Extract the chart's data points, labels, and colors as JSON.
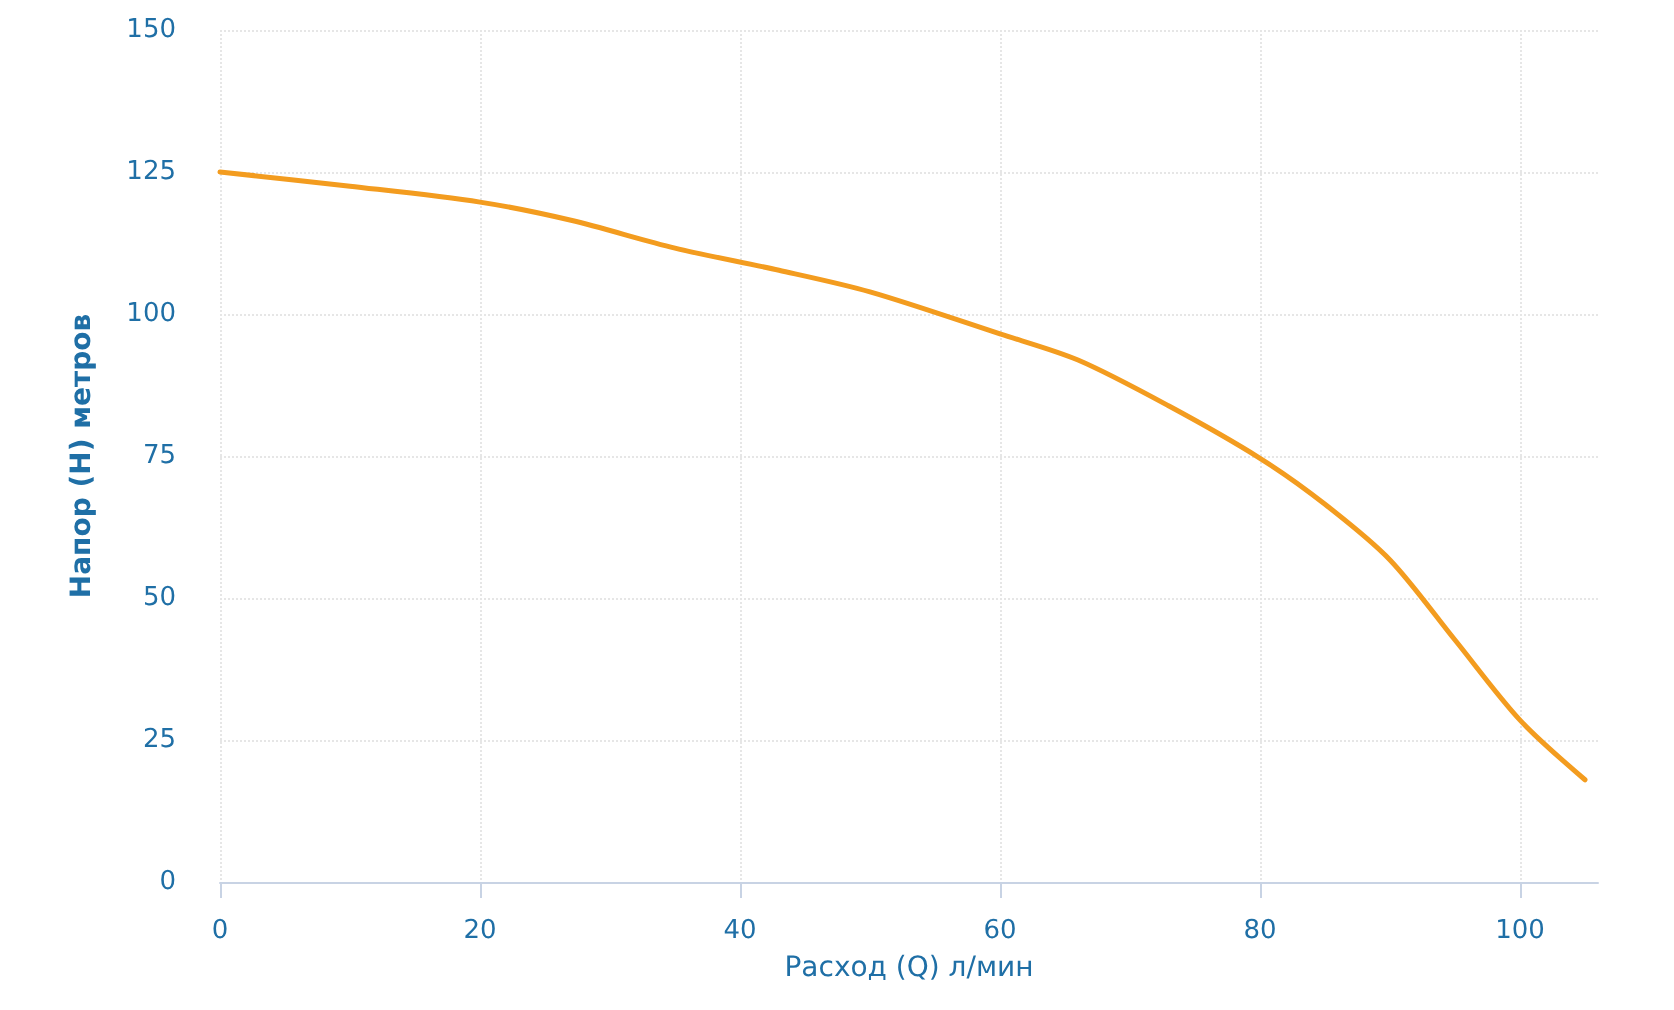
{
  "chart_data": {
    "type": "line",
    "xlabel": "Расход (Q) л/мин",
    "ylabel": "Напор (H) метров",
    "xlim": [
      0,
      106
    ],
    "xticks": [
      0,
      20,
      40,
      60,
      80,
      100
    ],
    "ylim": [
      0,
      150
    ],
    "yticks": [
      0,
      25,
      50,
      75,
      100,
      125,
      150
    ],
    "grid": true,
    "marker": "none",
    "line_style": "solid",
    "series": [
      {
        "color": "#f39c1f",
        "x": [
          0,
          10,
          20,
          27,
          35,
          43,
          50,
          60,
          66,
          73,
          80,
          85,
          90,
          95,
          100,
          105
        ],
        "values": [
          125,
          122.5,
          119.7,
          116.5,
          111.6,
          107.7,
          103.9,
          96.5,
          91.9,
          83.8,
          74.6,
          66.5,
          56.7,
          42.6,
          28.5,
          18
        ]
      }
    ]
  }
}
